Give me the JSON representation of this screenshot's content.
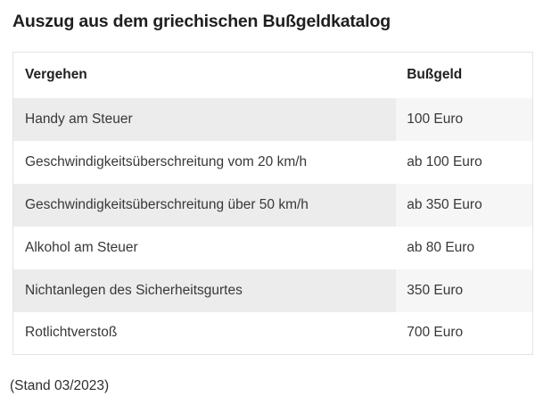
{
  "chart_data": {
    "type": "table",
    "title": "Auszug aus dem griechischen Bußgeldkatalog",
    "columns": [
      "Vergehen",
      "Bußgeld"
    ],
    "rows": [
      [
        "Handy am Steuer",
        "100 Euro"
      ],
      [
        "Geschwindigkeitsüberschreitung vom 20 km/h",
        "ab 100 Euro"
      ],
      [
        "Geschwindigkeitsüberschreitung über 50 km/h",
        "ab 350 Euro"
      ],
      [
        "Alkohol am Steuer",
        "ab 80 Euro"
      ],
      [
        "Nichtanlegen des Sicherheitsgurtes",
        "350 Euro"
      ],
      [
        "Rotlichtverstoß",
        "700 Euro"
      ]
    ],
    "footnote": "(Stand 03/2023)",
    "layout": {
      "striped_rows": "odd",
      "legend": "none",
      "grid": "off"
    }
  },
  "colors": {
    "stripe_col1": "#ececec",
    "stripe_col2": "#f6f6f6",
    "table_border": "#e3e3e3",
    "body_text": "#383838",
    "heading_text": "#1f1f1f"
  }
}
